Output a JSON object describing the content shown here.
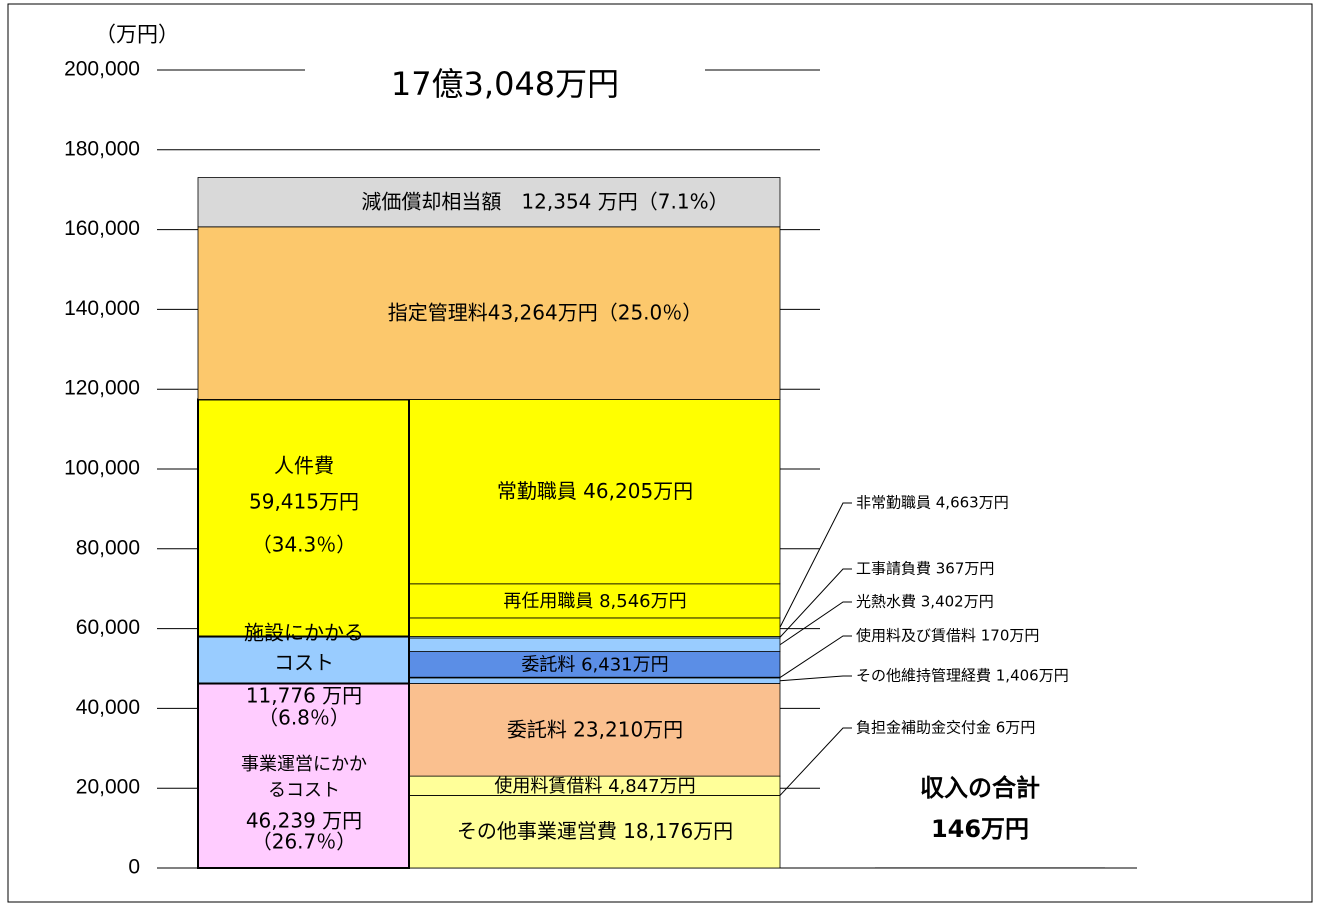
{
  "chart_data": {
    "type": "stacked_bar",
    "unit_label": "（万円）",
    "title": "17億3,048万円",
    "ylim": [
      0,
      200000
    ],
    "yticks": [
      0,
      {
        "value": 20000,
        "label": "20,000"
      },
      {
        "value": 40000,
        "label": "40,000"
      },
      {
        "value": 60000,
        "label": "60,000"
      },
      {
        "value": 80000,
        "label": "80,000"
      },
      {
        "value": 100000,
        "label": "100,000"
      },
      {
        "value": 120000,
        "label": "120,000"
      },
      {
        "value": 140000,
        "label": "140,000"
      },
      {
        "value": 160000,
        "label": "160,000"
      },
      {
        "value": 180000,
        "label": "180,000"
      },
      {
        "value": 200000,
        "label": "200,000"
      }
    ],
    "grid": true,
    "left_segments": [
      {
        "label_lines": [
          "事業運営にかか",
          "るコスト",
          "46,239 万円",
          "（26.7％）"
        ],
        "value": 46239,
        "color": "#ffccff"
      },
      {
        "label_lines": [
          "施設にかかる",
          "コスト",
          "11,776 万円",
          "（6.8％）"
        ],
        "value": 11776,
        "color": "#99ccff"
      },
      {
        "label_lines": [
          "人件費",
          "59,415万円",
          "（34.3％）"
        ],
        "value": 59415,
        "color": "#ffff00"
      }
    ],
    "top_segments": [
      {
        "label": "指定管理料43,264万円（25.0％）",
        "value": 43264,
        "color": "#fcc86c"
      },
      {
        "label": "減価償却相当額　12,354 万円（7.1%）",
        "value": 12354,
        "color": "#d9d9d9"
      }
    ],
    "right_segments": [
      {
        "label": "その他事業運営費 18,176万円",
        "value": 18176,
        "color": "#ffff99"
      },
      {
        "label": "負担金補助金交付金 6万円",
        "value": 6,
        "color": "#ffff99"
      },
      {
        "label": "使用料賃借料 4,847万円",
        "value": 4847,
        "color": "#ffff99"
      },
      {
        "label": "委託料 23,210万円",
        "value": 23210,
        "color": "#fac08f"
      },
      {
        "label": "その他維持管理経費 1,406万円",
        "value": 1406,
        "color": "#99ccff"
      },
      {
        "label": "使用料及び賃借料 170万円",
        "value": 170,
        "color": "#99ccff"
      },
      {
        "label": "委託料 6,431万円",
        "value": 6431,
        "color": "#5b8ee6"
      },
      {
        "label": "光熱水費 3,402万円",
        "value": 3402,
        "color": "#99ccff"
      },
      {
        "label": "工事請負費 367万円",
        "value": 367,
        "color": "#99ccff"
      },
      {
        "label": "非常勤職員 4,663万円",
        "value": 4663,
        "color": "#ffff00"
      },
      {
        "label": "再任用職員 8,546万円",
        "value": 8546,
        "color": "#ffff00"
      },
      {
        "label": "常勤職員 46,205万円",
        "value": 46205,
        "color": "#ffff00"
      }
    ],
    "revenue": {
      "label_lines": [
        "収入の合計",
        "146万円"
      ],
      "value": 146
    }
  }
}
